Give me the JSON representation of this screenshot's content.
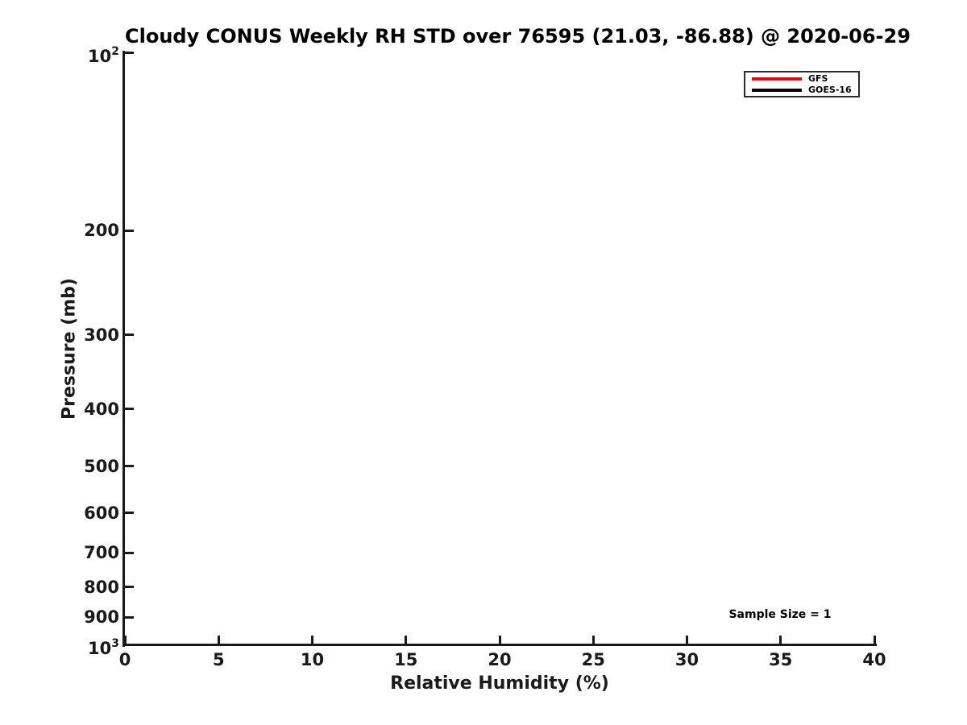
{
  "chart_data": {
    "type": "line",
    "title": "Cloudy CONUS Weekly RH STD over 76595 (21.03, -86.88) @ 2020-06-29",
    "xlabel": "Relative Humidity (%)",
    "ylabel": "Pressure (mb)",
    "xlim": [
      0,
      40
    ],
    "ylim": [
      100,
      1000
    ],
    "yscale": "log",
    "y_axis_inverted_note": "pressure increases downward",
    "grid": false,
    "x_ticks": [
      0,
      5,
      10,
      15,
      20,
      25,
      30,
      35,
      40
    ],
    "x_tick_labels": [
      "0",
      "5",
      "10",
      "15",
      "20",
      "25",
      "30",
      "35",
      "40"
    ],
    "y_ticks": [
      100,
      200,
      300,
      400,
      500,
      600,
      700,
      800,
      900,
      1000
    ],
    "y_tick_labels": [
      "10²",
      "200",
      "300",
      "400",
      "500",
      "600",
      "700",
      "800",
      "900",
      "10³"
    ],
    "legend_position": "upper right",
    "series": [
      {
        "name": "GFS",
        "color": "#e8000b",
        "x": [],
        "y": []
      },
      {
        "name": "GOES-16",
        "color": "#000000",
        "x": [],
        "y": []
      }
    ],
    "annotation": "Sample Size = 1"
  }
}
